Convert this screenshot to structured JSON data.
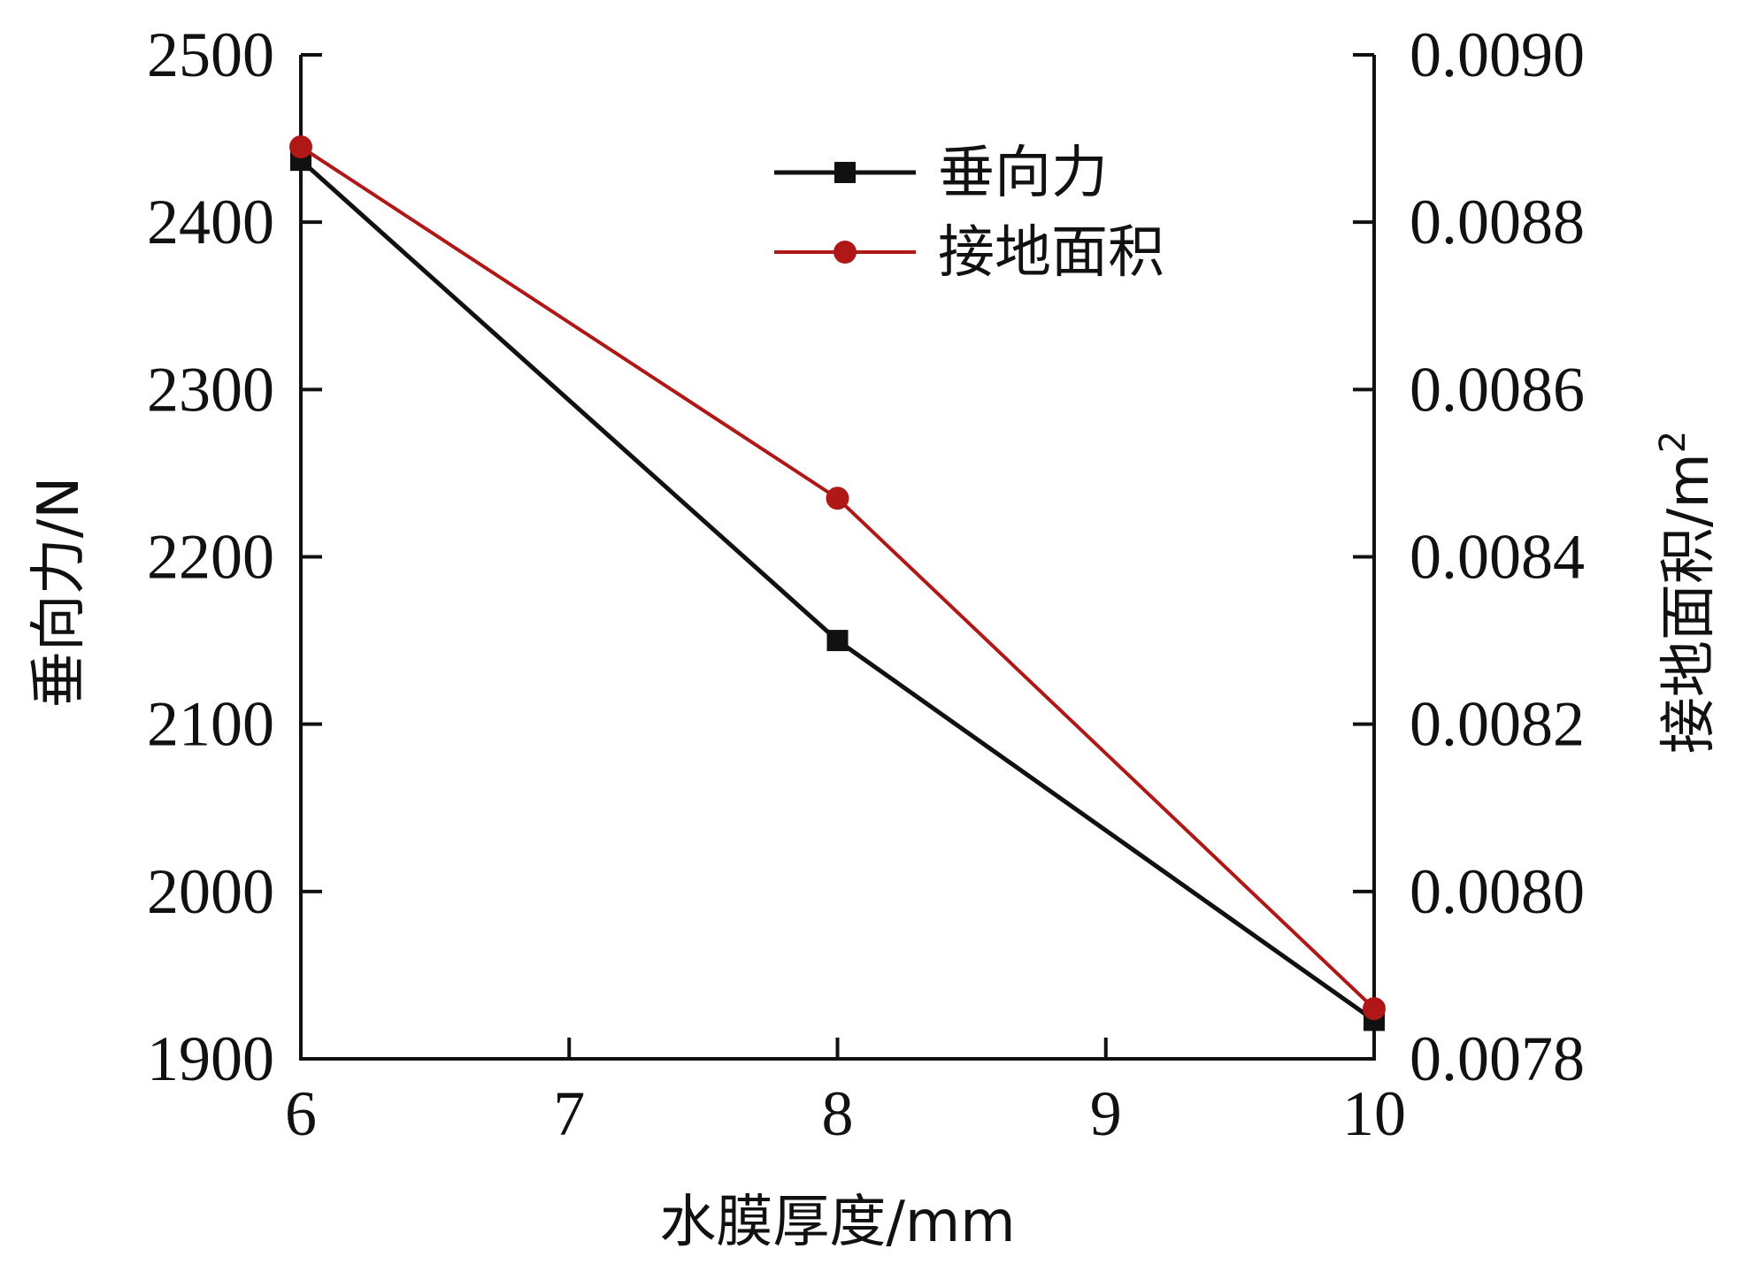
{
  "chart_data": {
    "type": "line",
    "x": [
      6,
      8,
      10
    ],
    "xlabel": "水膜厚度/mm",
    "xlim": [
      6,
      10
    ],
    "xticks": [
      "6",
      "7",
      "8",
      "9",
      "10"
    ],
    "ylabel_left": "垂向力/N",
    "ylim_left": [
      1900,
      2500
    ],
    "yticks_left": [
      "1900",
      "2000",
      "2100",
      "2200",
      "2300",
      "2400",
      "2500"
    ],
    "ylabel_right": "接地面积/m",
    "ylabel_right_sup": "2",
    "ylim_right": [
      0.0078,
      0.009
    ],
    "yticks_right": [
      "0.0078",
      "0.0080",
      "0.0082",
      "0.0084",
      "0.0086",
      "0.0088",
      "0.0090"
    ],
    "grid": false,
    "legend_position": "top-right",
    "series": [
      {
        "name": "垂向力",
        "axis": "left",
        "values": [
          2437,
          2150,
          1923
        ],
        "color": "#111111",
        "marker": "square"
      },
      {
        "name": "接地面积",
        "axis": "right",
        "values": [
          0.00889,
          0.00847,
          0.00786
        ],
        "color": "#b01818",
        "marker": "circle"
      }
    ]
  }
}
